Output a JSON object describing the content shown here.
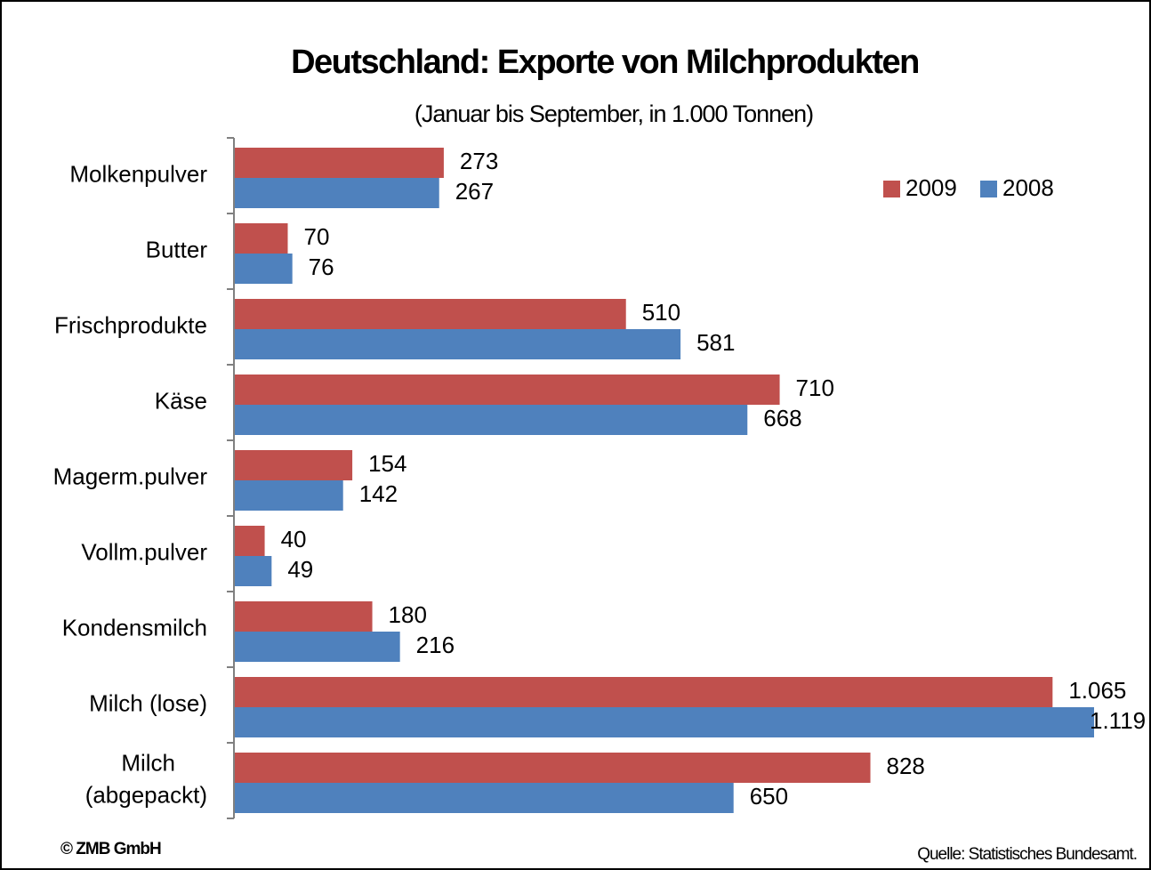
{
  "chart_data": {
    "type": "bar",
    "orientation": "horizontal",
    "title": "Deutschland: Exporte von Milchprodukten",
    "subtitle": "(Januar bis September, in 1.000 Tonnen)",
    "categories": [
      "Molkenpulver",
      "Butter",
      "Frischprodukte",
      "Käse",
      "Magerm.pulver",
      "Vollm.pulver",
      "Kondensmilch",
      "Milch (lose)",
      "Milch\n(abgepackt)"
    ],
    "series": [
      {
        "name": "2009",
        "color": "#c0504d",
        "values": [
          273,
          70,
          510,
          710,
          154,
          40,
          180,
          1065,
          828
        ],
        "value_labels": [
          "273",
          "70",
          "510",
          "710",
          "154",
          "40",
          "180",
          "1.065",
          "828"
        ]
      },
      {
        "name": "2008",
        "color": "#4f81bd",
        "values": [
          267,
          76,
          581,
          668,
          142,
          49,
          216,
          1119,
          650
        ],
        "value_labels": [
          "267",
          "76",
          "581",
          "668",
          "142",
          "49",
          "216",
          "1.119",
          "650"
        ]
      }
    ],
    "xlim": [
      0,
      1200
    ],
    "legend": "top-right",
    "footer_left": "© ZMB GmbH",
    "source": "Quelle: Statistisches Bundesamt."
  }
}
